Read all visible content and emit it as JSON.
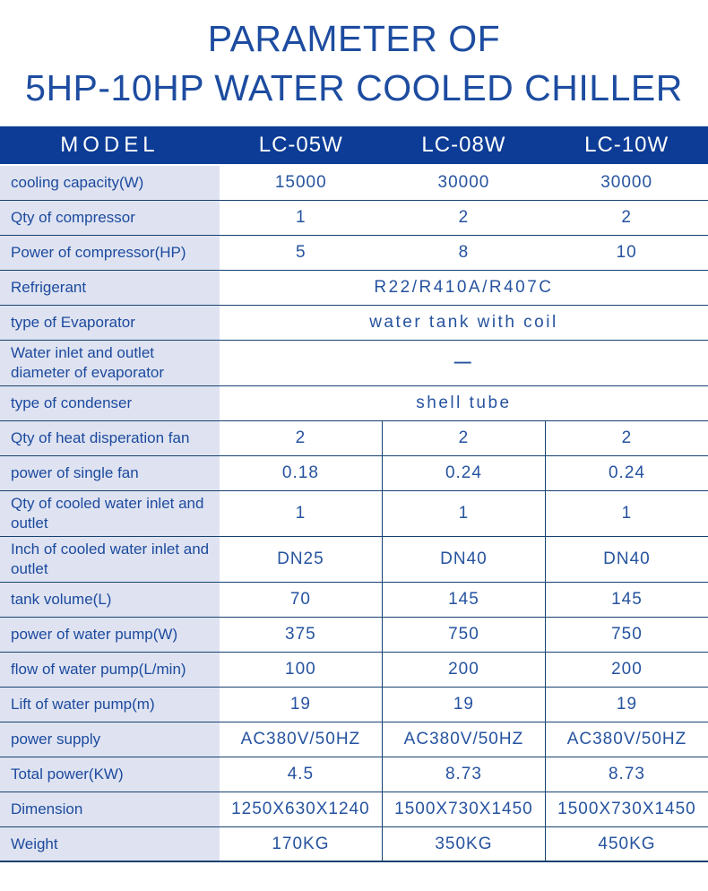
{
  "title": {
    "line1": "PARAMETER OF",
    "line2": "5HP-10HP WATER COOLED CHILLER"
  },
  "table": {
    "header": {
      "model_label": "MODEL",
      "columns": [
        "LC-05W",
        "LC-08W",
        "LC-10W"
      ]
    },
    "rows": [
      {
        "label": "cooling capacity(W)",
        "values": [
          "15000",
          "30000",
          "30000"
        ]
      },
      {
        "label": "Qty of compressor",
        "values": [
          "1",
          "2",
          "2"
        ]
      },
      {
        "label": "Power of compressor(HP)",
        "values": [
          "5",
          "8",
          "10"
        ]
      },
      {
        "label": "Refrigerant",
        "value": "R22/R410A/R407C"
      },
      {
        "label": "type of Evaporator",
        "value": "water tank with coil"
      },
      {
        "label": "Water inlet and outlet diameter of evaporator",
        "value": "—"
      },
      {
        "label": "type of condenser",
        "value": "shell tube"
      },
      {
        "label": "Qty of heat disperation fan",
        "values": [
          "2",
          "2",
          "2"
        ]
      },
      {
        "label": "power of single fan",
        "values": [
          "0.18",
          "0.24",
          "0.24"
        ]
      },
      {
        "label": "Qty of cooled water inlet and outlet",
        "values": [
          "1",
          "1",
          "1"
        ]
      },
      {
        "label": "Inch of cooled water inlet and outlet",
        "values": [
          "DN25",
          "DN40",
          "DN40"
        ]
      },
      {
        "label": "tank volume(L)",
        "values": [
          "70",
          "145",
          "145"
        ]
      },
      {
        "label": "power of water pump(W)",
        "values": [
          "375",
          "750",
          "750"
        ]
      },
      {
        "label": "flow of water pump(L/min)",
        "values": [
          "100",
          "200",
          "200"
        ]
      },
      {
        "label": "Lift of water pump(m)",
        "values": [
          "19",
          "19",
          "19"
        ]
      },
      {
        "label": "power supply",
        "values": [
          "AC380V/50HZ",
          "AC380V/50HZ",
          "AC380V/50HZ"
        ]
      },
      {
        "label": "Total power(KW)",
        "values": [
          "4.5",
          "8.73",
          "8.73"
        ]
      },
      {
        "label": "Dimension",
        "values": [
          "1250X630X1240",
          "1500X730X1450",
          "1500X730X1450"
        ]
      },
      {
        "label": "Weight",
        "values": [
          "170KG",
          "350KG",
          "450KG"
        ]
      }
    ]
  },
  "colors": {
    "navy": "#0c3c96",
    "border": "#17426f",
    "labelbg": "#dfe3f1",
    "labeltext": "#1c4a9e",
    "valuetext": "#26539f",
    "titleblue": "#1d4ca0"
  }
}
